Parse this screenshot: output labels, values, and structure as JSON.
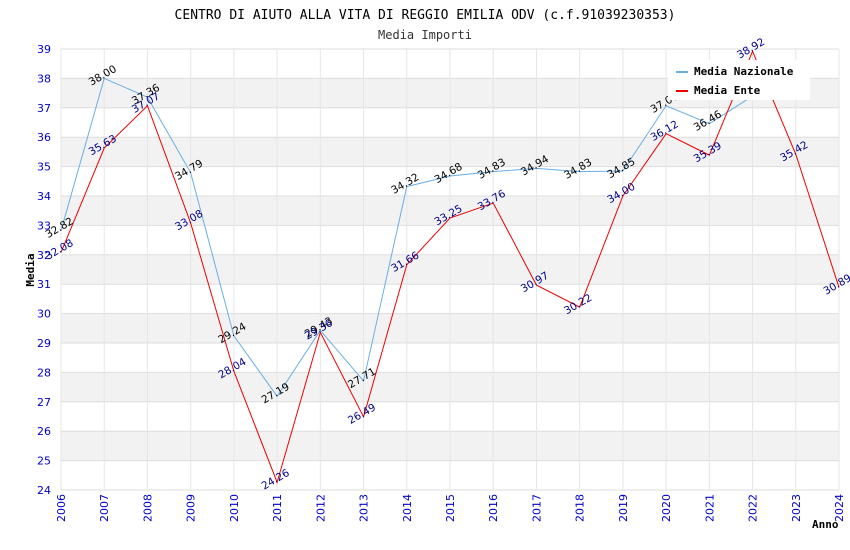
{
  "chart_data": {
    "type": "line",
    "title": "CENTRO DI AIUTO ALLA VITA DI REGGIO EMILIA ODV (c.f.91039230353)",
    "subtitle": "Media Importi",
    "xlabel": "Anno",
    "ylabel": "Media",
    "x": [
      "2006",
      "2007",
      "2008",
      "2009",
      "2010",
      "2011",
      "2012",
      "2013",
      "2014",
      "2015",
      "2016",
      "2017",
      "2018",
      "2019",
      "2020",
      "2021",
      "2022",
      "2023",
      "2024"
    ],
    "yticks": [
      "24",
      "25",
      "26",
      "27",
      "28",
      "29",
      "30",
      "31",
      "32",
      "33",
      "34",
      "35",
      "36",
      "37",
      "38",
      "39"
    ],
    "ylim": [
      24,
      39
    ],
    "grid": "horizontal bands",
    "legend_position": "top-right",
    "series": [
      {
        "name": "Media Nazionale",
        "color": "#6aaee6",
        "values": [
          32.82,
          38.0,
          37.36,
          34.79,
          29.24,
          27.19,
          29.43,
          27.71,
          34.32,
          34.68,
          34.83,
          34.94,
          34.83,
          34.85,
          37.07,
          36.46,
          37.4,
          null,
          null
        ],
        "labels": [
          "32.82",
          "38.00",
          "37.36",
          "34.79",
          "29.24",
          "27.19",
          "29.43",
          "27.71",
          "34.32",
          "34.68",
          "34.83",
          "34.94",
          "34.83",
          "34.85",
          "37.07",
          "36.46",
          "",
          null,
          null
        ]
      },
      {
        "name": "Media Ente",
        "color": "#ee0000",
        "values": [
          32.08,
          35.63,
          37.07,
          33.08,
          28.04,
          24.26,
          29.36,
          26.49,
          31.66,
          33.25,
          33.76,
          30.97,
          30.22,
          34.0,
          36.12,
          35.39,
          38.92,
          35.42,
          30.89
        ],
        "labels": [
          "32.08",
          "35.63",
          "37.07",
          "33.08",
          "28.04",
          "24.26",
          "29.36",
          "26.49",
          "31.66",
          "33.25",
          "33.76",
          "30.97",
          "30.22",
          "34.00",
          "36.12",
          "35.39",
          "38.92",
          "35.42",
          "30.89"
        ]
      }
    ]
  }
}
